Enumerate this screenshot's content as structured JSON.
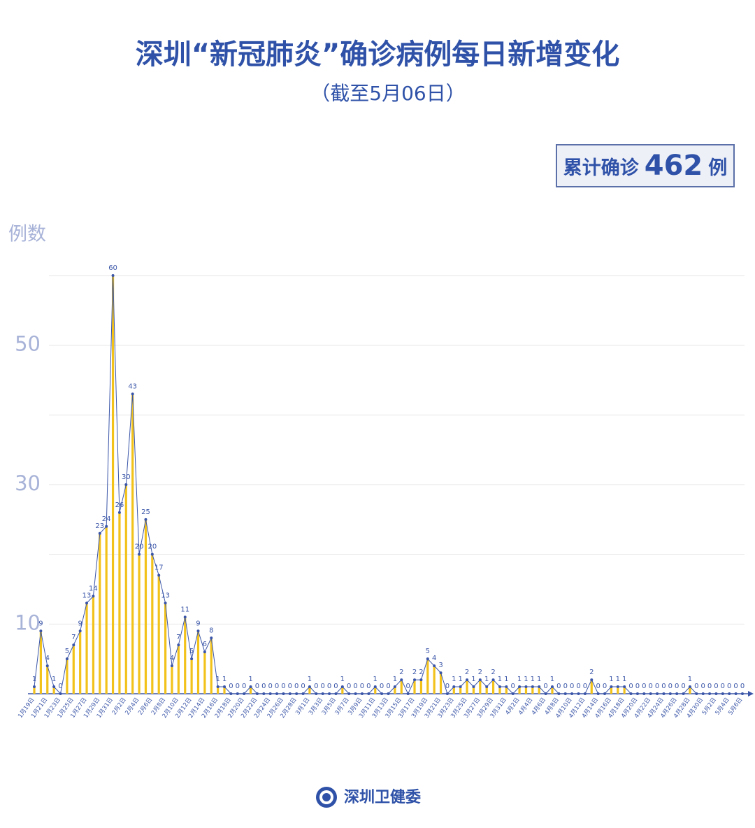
{
  "chart_data": {
    "type": "bar-line",
    "title": "深圳“新冠肺炎”确诊病例每日新增变化",
    "subtitle": "（截至5月06日）",
    "total_box": {
      "prefix": "累计确诊",
      "number": "462",
      "suffix": "例"
    },
    "y_label": "例数",
    "footer": "深圳卫健委",
    "bar_color": "#f2c21b",
    "line_color": "#3b56a8",
    "ylim": [
      0,
      60
    ],
    "yticks": [
      10,
      30,
      50
    ],
    "ygrid": [
      10,
      20,
      30,
      40,
      50,
      60
    ],
    "categories": [
      "1月19日",
      null,
      "1月21日",
      null,
      "1月23日",
      null,
      "1月25日",
      null,
      "1月27日",
      null,
      "1月29日",
      null,
      "1月31日",
      null,
      "2月2日",
      null,
      "2月4日",
      null,
      "2月6日",
      null,
      "2月8日",
      null,
      "2月10日",
      null,
      "2月12日",
      null,
      "2月14日",
      null,
      "2月16日",
      null,
      "2月18日",
      null,
      "2月20日",
      null,
      "2月22日",
      null,
      "2月24日",
      null,
      "2月26日",
      null,
      "2月28日",
      null,
      "3月1日",
      null,
      "3月3日",
      null,
      "3月5日",
      null,
      "3月7日",
      null,
      "3月9日",
      null,
      "3月11日",
      null,
      "3月13日",
      null,
      "3月15日",
      null,
      "3月17日",
      null,
      "3月19日",
      null,
      "3月21日",
      null,
      "3月23日",
      null,
      "3月25日",
      null,
      "3月27日",
      null,
      "3月29日",
      null,
      "3月31日",
      null,
      "4月2日",
      null,
      "4月4日",
      null,
      "4月6日",
      null,
      "4月8日",
      null,
      "4月10日",
      null,
      "4月12日",
      null,
      "4月14日",
      null,
      "4月16日",
      null,
      "4月18日",
      null,
      "4月20日",
      null,
      "4月22日",
      null,
      "4月24日",
      null,
      "4月26日",
      null,
      "4月28日",
      null,
      "4月30日",
      null,
      "5月2日",
      null,
      "5月4日",
      null,
      "5月6日"
    ],
    "values": [
      1,
      9,
      4,
      1,
      0,
      5,
      7,
      9,
      13,
      14,
      23,
      24,
      60,
      26,
      30,
      43,
      20,
      25,
      20,
      17,
      13,
      4,
      7,
      11,
      5,
      9,
      6,
      8,
      1,
      1,
      0,
      0,
      0,
      1,
      0,
      0,
      0,
      0,
      0,
      0,
      0,
      0,
      1,
      0,
      0,
      0,
      0,
      1,
      0,
      0,
      0,
      0,
      1,
      0,
      0,
      1,
      2,
      0,
      2,
      2,
      5,
      4,
      3,
      0,
      1,
      1,
      2,
      1,
      2,
      1,
      2,
      1,
      1,
      0,
      1,
      1,
      1,
      1,
      0,
      1,
      0,
      0,
      0,
      0,
      0,
      2,
      0,
      0,
      1,
      1,
      1,
      0,
      0,
      0,
      0,
      0,
      0,
      0,
      0,
      0,
      1,
      0,
      0,
      0,
      0,
      0,
      0,
      0,
      0
    ]
  }
}
